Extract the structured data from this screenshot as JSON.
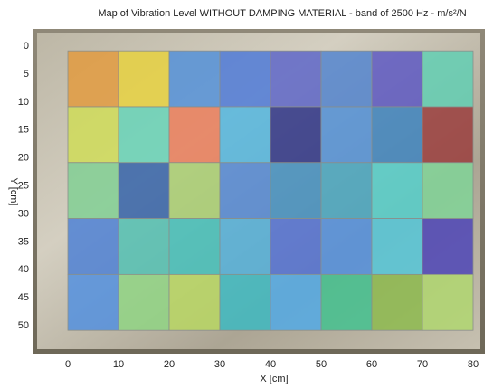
{
  "chart_data": {
    "type": "heatmap",
    "title": "Map of Vibration Level WITHOUT DAMPING MATERIAL - band of 2500 Hz - m/s²/N",
    "xlabel": "X [cm]",
    "ylabel": "Y [cm]",
    "xlim": [
      0,
      80
    ],
    "ylim": [
      0,
      50
    ],
    "x_ticks": [
      0,
      10,
      20,
      30,
      40,
      50,
      60,
      70,
      80
    ],
    "y_ticks": [
      0,
      5,
      10,
      15,
      20,
      25,
      30,
      35,
      40,
      45,
      50
    ],
    "y_inverted": true,
    "cell_size_cm": 10,
    "background": "photo of plate with tiled damping squares",
    "cells": [
      [
        "#e39a3c",
        "#e8d23c",
        "#4f8fd9",
        "#4a78d8",
        "#5a63c8",
        "#4f82d0",
        "#5a55c3",
        "#5fcfb3"
      ],
      [
        "#cfdd55",
        "#64d4b8",
        "#ec7b58",
        "#4fb6e0",
        "#2a2f86",
        "#4f90d9",
        "#3a82c0",
        "#9a3a3a"
      ],
      [
        "#7fd092",
        "#2f5fa8",
        "#a8d070",
        "#4f86d6",
        "#3f8fc2",
        "#44a6c2",
        "#52d1cd",
        "#7fd597"
      ],
      [
        "#4a7fd6",
        "#4fc1b3",
        "#40c0bb",
        "#4fb0dc",
        "#4f6fd6",
        "#4f8fe0",
        "#52c8dc",
        "#4a42b8"
      ],
      [
        "#4f8fe0",
        "#8fd582",
        "#b8d860",
        "#39b9c2",
        "#4faae8",
        "#3fc28f",
        "#8cbb4c",
        "#b0d86e"
      ]
    ]
  }
}
